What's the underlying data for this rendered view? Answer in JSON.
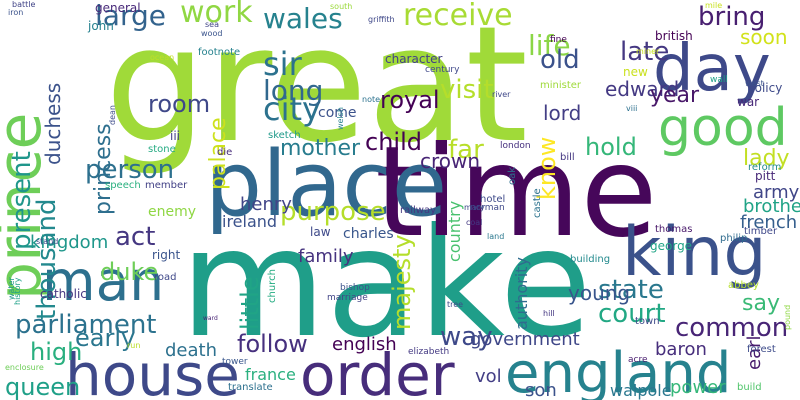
{
  "words": [
    {
      "t": "great",
      "c": "#a0da39"
    },
    {
      "t": "make",
      "c": "#1f9e89"
    },
    {
      "t": "time",
      "c": "#46075a"
    },
    {
      "t": "place",
      "c": "#31688e"
    },
    {
      "t": "prince",
      "c": "#6ece58"
    },
    {
      "t": "house",
      "c": "#3e4989"
    },
    {
      "t": "order",
      "c": "#472d7b"
    },
    {
      "t": "england",
      "c": "#26828e"
    },
    {
      "t": "king",
      "c": "#3b528b"
    },
    {
      "t": "day",
      "c": "#3e4989"
    },
    {
      "t": "good",
      "c": "#5ec962"
    },
    {
      "t": "man",
      "c": "#2d708e"
    },
    {
      "t": "wales",
      "c": "#26828e"
    },
    {
      "t": "sir",
      "c": "#2c728e"
    },
    {
      "t": "city",
      "c": "#2c728e"
    },
    {
      "t": "receive",
      "c": "#a8db34"
    },
    {
      "t": "work",
      "c": "#90d743"
    },
    {
      "t": "large",
      "c": "#33638d"
    },
    {
      "t": "life",
      "c": "#8bd646"
    },
    {
      "t": "late",
      "c": "#453882"
    },
    {
      "t": "bring",
      "c": "#481f70"
    },
    {
      "t": "long",
      "c": "#31688e"
    },
    {
      "t": "person",
      "c": "#2d708e"
    },
    {
      "t": "present",
      "c": "#1f968b"
    },
    {
      "t": "thousand",
      "c": "#23898e"
    },
    {
      "t": "room",
      "c": "#3f4889"
    },
    {
      "t": "visit",
      "c": "#b5de2b"
    },
    {
      "t": "old",
      "c": "#3b528b"
    },
    {
      "t": "royal",
      "c": "#440154"
    },
    {
      "t": "edward",
      "c": "#443983"
    },
    {
      "t": "year",
      "c": "#481769"
    },
    {
      "t": "soon",
      "c": "#d2e21b"
    },
    {
      "t": "princess",
      "c": "#2e6f8e"
    },
    {
      "t": "palace",
      "c": "#cde11d"
    },
    {
      "t": "duchess",
      "c": "#3b528b"
    },
    {
      "t": "purpose",
      "c": "#b5de2b"
    },
    {
      "t": "mother",
      "c": "#287c8e"
    },
    {
      "t": "child",
      "c": "#440154"
    },
    {
      "t": "far",
      "c": "#b8de29"
    },
    {
      "t": "hold",
      "c": "#35b779"
    },
    {
      "t": "know",
      "c": "#fde725"
    },
    {
      "t": "crown",
      "c": "#482475"
    },
    {
      "t": "lady",
      "c": "#c2df23"
    },
    {
      "t": "lord",
      "c": "#433e85"
    },
    {
      "t": "act",
      "c": "#453781"
    },
    {
      "t": "henry",
      "c": "#414487"
    },
    {
      "t": "ireland",
      "c": "#3b528b"
    },
    {
      "t": "state",
      "c": "#2a788e"
    },
    {
      "t": "court",
      "c": "#22a884"
    },
    {
      "t": "say",
      "c": "#3aba76"
    },
    {
      "t": "army",
      "c": "#404688"
    },
    {
      "t": "brother",
      "c": "#20a386"
    },
    {
      "t": "french",
      "c": "#355f8d"
    },
    {
      "t": "duke",
      "c": "#6ece58"
    },
    {
      "t": "kingdom",
      "c": "#1f978b"
    },
    {
      "t": "parliament",
      "c": "#2c728e"
    },
    {
      "t": "little",
      "c": "#20a486"
    },
    {
      "t": "majesty",
      "c": "#b5de2b"
    },
    {
      "t": "young",
      "c": "#39558c"
    },
    {
      "t": "family",
      "c": "#46337f"
    },
    {
      "t": "common",
      "c": "#482576"
    },
    {
      "t": "way",
      "c": "#3e4989"
    },
    {
      "t": "high",
      "c": "#29af7f"
    },
    {
      "t": "early",
      "c": "#2a768e"
    },
    {
      "t": "follow",
      "c": "#46307e"
    },
    {
      "t": "queen",
      "c": "#1fa088"
    },
    {
      "t": "english",
      "c": "#440154"
    },
    {
      "t": "death",
      "c": "#2d718e"
    },
    {
      "t": "government",
      "c": "#3f4788"
    },
    {
      "t": "baron",
      "c": "#472e7c"
    },
    {
      "t": "earl",
      "c": "#481c6e"
    },
    {
      "t": "france",
      "c": "#2ab07f"
    },
    {
      "t": "vol",
      "c": "#433e85"
    },
    {
      "t": "son",
      "c": "#3b528b"
    },
    {
      "t": "walpole",
      "c": "#2a778e"
    },
    {
      "t": "power",
      "c": "#35b779"
    },
    {
      "t": "charles",
      "c": "#39568c"
    },
    {
      "t": "authority",
      "c": "#2f6c8e"
    },
    {
      "t": "enemy",
      "c": "#8fd744"
    },
    {
      "t": "country",
      "c": "#48c16e"
    },
    {
      "t": "minister",
      "c": "#9fda3a"
    },
    {
      "t": "general",
      "c": "#482979"
    },
    {
      "t": "john",
      "c": "#26818e"
    },
    {
      "t": "come",
      "c": "#3b528b"
    },
    {
      "t": "character",
      "c": "#424186"
    },
    {
      "t": "british",
      "c": "#440154"
    },
    {
      "t": "footnote",
      "c": "#26828e"
    },
    {
      "t": "century",
      "c": "#3f4889"
    },
    {
      "t": "wall",
      "c": "#1fa088"
    },
    {
      "t": "policy",
      "c": "#3e4a89"
    },
    {
      "t": "war",
      "c": "#482979"
    },
    {
      "t": "new",
      "c": "#cae11f"
    },
    {
      "t": "battle",
      "c": "#414487"
    },
    {
      "t": "iron",
      "c": "#3b528b"
    },
    {
      "t": "south",
      "c": "#9bd93c"
    },
    {
      "t": "griffith",
      "c": "#3f4889"
    },
    {
      "t": "mile",
      "c": "#c8e020"
    },
    {
      "t": "fine",
      "c": "#440154"
    },
    {
      "t": "iii",
      "c": "#424086"
    },
    {
      "t": "stone",
      "c": "#25ab82"
    },
    {
      "t": "sketch",
      "c": "#1f9a8a"
    },
    {
      "t": "london",
      "c": "#46307e"
    },
    {
      "t": "bill",
      "c": "#453882"
    },
    {
      "t": "pitt",
      "c": "#482878"
    },
    {
      "t": "reform",
      "c": "#238a8d"
    },
    {
      "t": "oak",
      "c": "#2d708e"
    },
    {
      "t": "castle",
      "c": "#2c728e"
    },
    {
      "t": "hotel",
      "c": "#3e4a89"
    },
    {
      "t": "norman",
      "c": "#3e4989"
    },
    {
      "t": "member",
      "c": "#424186"
    },
    {
      "t": "speech",
      "c": "#2ab07f"
    },
    {
      "t": "railway",
      "c": "#453781"
    },
    {
      "t": "law",
      "c": "#3e4989"
    },
    {
      "t": "right",
      "c": "#3a548c"
    },
    {
      "t": "road",
      "c": "#3f4889"
    },
    {
      "t": "catholic",
      "c": "#453781"
    },
    {
      "t": "bishop",
      "c": "#3b528b"
    },
    {
      "t": "marriage",
      "c": "#414487"
    },
    {
      "t": "church",
      "c": "#25ac82"
    },
    {
      "t": "building",
      "c": "#238a8d"
    },
    {
      "t": "thomas",
      "c": "#48186a"
    },
    {
      "t": "george",
      "c": "#20a486"
    },
    {
      "t": "philip",
      "c": "#2f6b8e"
    },
    {
      "t": "timber",
      "c": "#3f4889"
    },
    {
      "t": "town",
      "c": "#3e4989"
    },
    {
      "t": "abbey",
      "c": "#b5de2b"
    },
    {
      "t": "forest",
      "c": "#3e4c8a"
    },
    {
      "t": "acre",
      "c": "#481c6e"
    },
    {
      "t": "build",
      "c": "#50c46a"
    },
    {
      "t": "tower",
      "c": "#39568c"
    },
    {
      "t": "elizabeth",
      "c": "#443a83"
    },
    {
      "t": "translate",
      "c": "#2d708e"
    },
    {
      "t": "history",
      "c": "#1fa188"
    },
    {
      "t": "water",
      "c": "#1f968b"
    },
    {
      "t": "stand",
      "c": "#3e4c8a"
    },
    {
      "t": "land",
      "c": "#2a788e"
    },
    {
      "t": "coal",
      "c": "#443983"
    },
    {
      "t": "mary",
      "c": "#3e4989"
    },
    {
      "t": "tree",
      "c": "#3e4c8a"
    },
    {
      "t": "river",
      "c": "#3f4889"
    },
    {
      "t": "hill",
      "c": "#453882"
    },
    {
      "t": "dean",
      "c": "#3e4c8a"
    },
    {
      "t": "ocean",
      "c": "#c0df25"
    },
    {
      "t": "welsh",
      "c": "#26828e"
    },
    {
      "t": "die",
      "c": "#472c7a"
    },
    {
      "t": "sea",
      "c": "#414487"
    },
    {
      "t": "wood",
      "c": "#3a548c"
    },
    {
      "t": "ward",
      "c": "#482475"
    },
    {
      "t": "enclosure",
      "c": "#6ece58"
    },
    {
      "t": "pound",
      "c": "#8fd744"
    },
    {
      "t": "west",
      "c": "#3b528b"
    },
    {
      "t": "viii",
      "c": "#2d708e"
    },
    {
      "t": "miner",
      "c": "#c8e020"
    },
    {
      "t": "note",
      "c": "#2c728e"
    },
    {
      "t": "run",
      "c": "#bade28"
    }
  ]
}
